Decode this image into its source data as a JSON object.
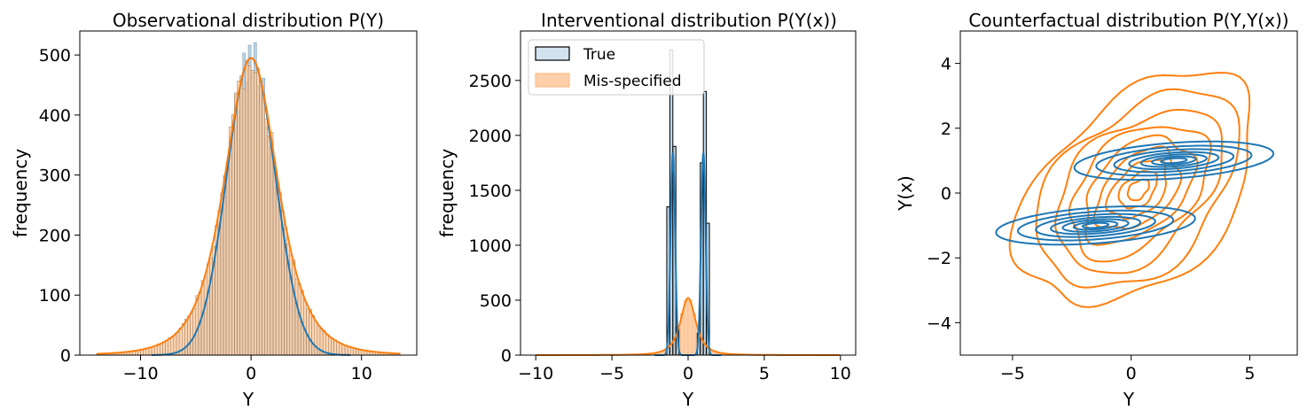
{
  "colors": {
    "true_series": "#1f77b4",
    "true_fill": "#a6c8e0",
    "misspecified_series": "#ff7f0e",
    "misspecified_fill": "#ffc89a"
  },
  "chart_data": [
    {
      "id": "observational",
      "type": "histogram",
      "title": "Observational distribution P(Y)",
      "xlabel": "Y",
      "ylabel": "frequency",
      "xlim": [
        -15.5,
        15.0
      ],
      "ylim": [
        0,
        540
      ],
      "xticks": [
        -10,
        0,
        10
      ],
      "xtick_labels": [
        "−10",
        "0",
        "10"
      ],
      "yticks": [
        0,
        100,
        200,
        300,
        400,
        500
      ],
      "ytick_labels": [
        "0",
        "100",
        "200",
        "300",
        "400",
        "500"
      ],
      "series": [
        {
          "key": "true",
          "color": "#1f77b4",
          "distribution": "normal",
          "mean": 0,
          "sd": 2.2,
          "peak": 495,
          "range": [
            -9,
            9
          ]
        },
        {
          "key": "misspecified",
          "color": "#ff7f0e",
          "distribution": "student-t",
          "mean": 0,
          "sd": 2.5,
          "df": 4,
          "peak": 495,
          "range": [
            -14,
            13.5
          ]
        }
      ],
      "bin_width": 0.25
    },
    {
      "id": "interventional",
      "type": "histogram",
      "title": "Interventional distribution P(Y(x))",
      "xlabel": "Y",
      "ylabel": "frequency",
      "xlim": [
        -11.0,
        11.0
      ],
      "ylim": [
        0,
        2950
      ],
      "xticks": [
        -10,
        -5,
        0,
        5,
        10
      ],
      "xtick_labels": [
        "−10",
        "−5",
        "0",
        "5",
        "10"
      ],
      "yticks": [
        0,
        500,
        1000,
        1500,
        2000,
        2500
      ],
      "ytick_labels": [
        "0",
        "500",
        "1000",
        "1500",
        "2000",
        "2500"
      ],
      "legend": {
        "position": "upper left",
        "entries": [
          {
            "key": "true",
            "label": "True"
          },
          {
            "key": "misspecified",
            "label": "Mis-specified"
          }
        ]
      },
      "series": [
        {
          "key": "true",
          "color": "#1f77b4",
          "label": "True",
          "distribution": "bimodal",
          "modes": [
            -1.0,
            1.0
          ],
          "sd": 0.15,
          "bars": [
            {
              "x0": -1.4,
              "x1": -1.2,
              "value": 1350
            },
            {
              "x0": -1.2,
              "x1": -1.0,
              "value": 2780
            },
            {
              "x0": -1.0,
              "x1": -0.8,
              "value": 1900
            },
            {
              "x0": -0.8,
              "x1": -0.6,
              "value": 250
            },
            {
              "x0": 0.6,
              "x1": 0.8,
              "value": 200
            },
            {
              "x0": 0.8,
              "x1": 1.0,
              "value": 1750
            },
            {
              "x0": 1.0,
              "x1": 1.2,
              "value": 2400
            },
            {
              "x0": 1.2,
              "x1": 1.4,
              "value": 1200
            }
          ],
          "kde_peak": 1840
        },
        {
          "key": "misspecified",
          "color": "#ff7f0e",
          "label": "Mis-specified",
          "distribution": "student-t",
          "mean": 0,
          "sd": 0.55,
          "df": 2,
          "peak": 520,
          "range": [
            -10,
            10
          ]
        }
      ]
    },
    {
      "id": "counterfactual",
      "type": "contour",
      "title": "Counterfactual distribution P(Y,Y(x))",
      "xlabel": "Y",
      "ylabel": "Y(x)",
      "xlim": [
        -7.2,
        7.0
      ],
      "ylim": [
        -5.0,
        5.0
      ],
      "xticks": [
        -5,
        0,
        5
      ],
      "xtick_labels": [
        "−5",
        "0",
        "5"
      ],
      "yticks": [
        -4,
        -2,
        0,
        2,
        4
      ],
      "ytick_labels": [
        "−4",
        "−2",
        "0",
        "2",
        "4"
      ],
      "series": [
        {
          "key": "true",
          "color": "#1f77b4",
          "components": [
            {
              "cx": 1.8,
              "cy": 1.0,
              "sx": 4.2,
              "sy": 0.55,
              "angle_deg": 3
            },
            {
              "cx": -1.5,
              "cy": -1.0,
              "sx": 4.2,
              "sy": 0.55,
              "angle_deg": 3
            }
          ],
          "levels": [
            1.0,
            0.78,
            0.6,
            0.45,
            0.33,
            0.22,
            0.13
          ]
        },
        {
          "key": "misspecified",
          "color": "#ff7f0e",
          "components": [
            {
              "cx": 0.3,
              "cy": 0.1,
              "sx": 5.3,
              "sy": 2.6,
              "angle_deg": 32
            }
          ],
          "levels": [
            1.0,
            0.85,
            0.7,
            0.58,
            0.46,
            0.35,
            0.25,
            0.16,
            0.09
          ]
        }
      ]
    }
  ]
}
